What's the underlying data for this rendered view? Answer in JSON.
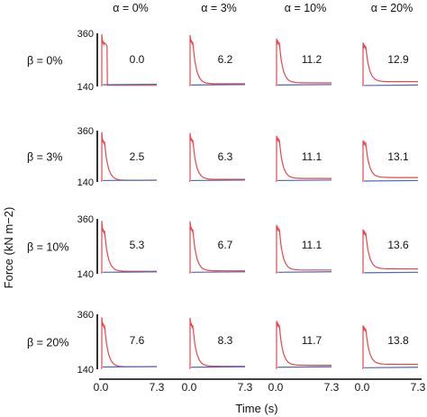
{
  "chart_data": {
    "type": "line",
    "ylabel": "Force (kN m−2)",
    "xlabel": "Time (s)",
    "ylim": [
      140,
      360
    ],
    "xlim": [
      0.0,
      7.3
    ],
    "y_ticks": [
      "360",
      "140"
    ],
    "x_ticks": [
      "0.0",
      "7.3"
    ],
    "col_headers": [
      "α = 0%",
      "α = 3%",
      "α = 10%",
      "α = 20%"
    ],
    "row_headers": [
      "β = 0%",
      "β = 3%",
      "β = 10%",
      "β = 20%"
    ],
    "colors": {
      "force": "#e8474f",
      "baseline": "#4a68b5",
      "axis": "#000000"
    },
    "panels": [
      [
        {
          "label": "0.0",
          "peak": 356,
          "plateau": 318,
          "drop": 0.8,
          "tail": 145,
          "base": 147
        },
        {
          "label": "6.2",
          "peak": 352,
          "plateau": 322,
          "drop": 0.9,
          "tail": 151,
          "base": 146
        },
        {
          "label": "11.2",
          "peak": 338,
          "plateau": 320,
          "drop": 1.0,
          "tail": 155,
          "base": 146
        },
        {
          "label": "12.9",
          "peak": 322,
          "plateau": 304,
          "drop": 1.1,
          "tail": 160,
          "base": 144
        }
      ],
      [
        {
          "label": "2.5",
          "peak": 354,
          "plateau": 310,
          "drop": 0.9,
          "tail": 147,
          "base": 146
        },
        {
          "label": "6.3",
          "peak": 350,
          "plateau": 318,
          "drop": 0.9,
          "tail": 151,
          "base": 146
        },
        {
          "label": "11.1",
          "peak": 338,
          "plateau": 320,
          "drop": 1.0,
          "tail": 155,
          "base": 146
        },
        {
          "label": "13.1",
          "peak": 318,
          "plateau": 303,
          "drop": 1.1,
          "tail": 159,
          "base": 144
        }
      ],
      [
        {
          "label": "5.3",
          "peak": 352,
          "plateau": 310,
          "drop": 0.9,
          "tail": 150,
          "base": 146
        },
        {
          "label": "6.7",
          "peak": 350,
          "plateau": 316,
          "drop": 0.9,
          "tail": 152,
          "base": 146
        },
        {
          "label": "11.1",
          "peak": 336,
          "plateau": 318,
          "drop": 1.0,
          "tail": 155,
          "base": 146
        },
        {
          "label": "13.6",
          "peak": 318,
          "plateau": 302,
          "drop": 1.1,
          "tail": 160,
          "base": 144
        }
      ],
      [
        {
          "label": "7.6",
          "peak": 348,
          "plateau": 314,
          "drop": 0.9,
          "tail": 150,
          "base": 149
        },
        {
          "label": "8.3",
          "peak": 346,
          "plateau": 314,
          "drop": 0.9,
          "tail": 152,
          "base": 148
        },
        {
          "label": "11.7",
          "peak": 334,
          "plateau": 316,
          "drop": 1.0,
          "tail": 156,
          "base": 148
        },
        {
          "label": "13.8",
          "peak": 316,
          "plateau": 300,
          "drop": 1.1,
          "tail": 160,
          "base": 146
        }
      ]
    ]
  }
}
